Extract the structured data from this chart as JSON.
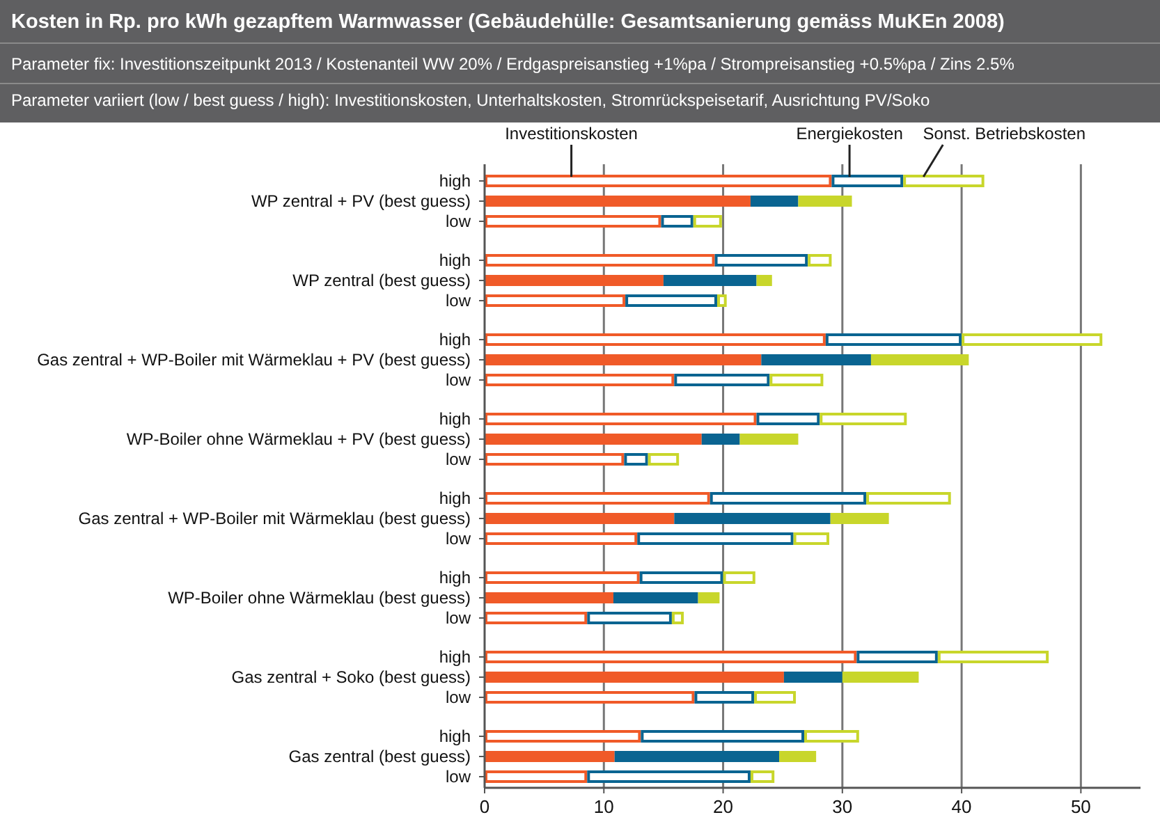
{
  "chart_data": {
    "type": "bar",
    "orientation": "horizontal",
    "stacked": true,
    "title": "Kosten in Rp. pro kWh gezapftem Warmwasser (Gebäudehülle: Gesamtsanierung gemäss MuKEn 2008)",
    "subtitle": "Parameter fix: Investitionszeitpunkt 2013 / Kostenanteil WW 20% / Erdgaspreisanstieg +1%pa / Strompreisanstieg +0.5%pa / Zins 2.5%",
    "annotations": [
      "Parameter variiert (low / best guess / high): Investitionskosten, Unterhaltskosten, Stromrückspeisetarif, Ausrichtung PV/Soko"
    ],
    "categories": [
      "high",
      "WP zentral + PV (best guess)",
      "low",
      "high",
      "WP zentral (best guess)",
      "low",
      "high",
      "Gas zentral + WP-Boiler mit Wärmeklau + PV (best guess)",
      "low",
      "high",
      "WP-Boiler ohne Wärmeklau + PV (best guess)",
      "low",
      "high",
      "Gas zentral + WP-Boiler mit Wärmeklau (best guess)",
      "low",
      "high",
      "WP-Boiler ohne Wärmeklau (best guess)",
      "low",
      "high",
      "Gas zentral + Soko (best guess)",
      "low",
      "high",
      "Gas zentral (best guess)",
      "low"
    ],
    "series": [
      {
        "name": "Investitionskosten",
        "color": "#f05a28",
        "colors": [
          "#ffffff",
          "#f05a28",
          "#ffffff",
          "#ffffff",
          "#f05a28",
          "#ffffff",
          "#ffffff",
          "#f05a28",
          "#ffffff",
          "#ffffff",
          "#f05a28",
          "#ffffff",
          "#ffffff",
          "#f05a28",
          "#ffffff",
          "#ffffff",
          "#f05a28",
          "#ffffff",
          "#ffffff",
          "#f05a28",
          "#ffffff",
          "#ffffff",
          "#f05a28",
          "#ffffff"
        ],
        "values": [
          29.1,
          22.3,
          14.8,
          19.3,
          15.0,
          11.8,
          28.6,
          23.2,
          15.9,
          22.8,
          18.2,
          11.7,
          18.9,
          15.9,
          12.8,
          13.0,
          10.8,
          8.6,
          31.2,
          25.1,
          17.6,
          13.1,
          10.9,
          8.6
        ]
      },
      {
        "name": "Energiekosten",
        "color": "#0a6491",
        "colors": [
          "#ffffff",
          "#0a6491",
          "#ffffff",
          "#ffffff",
          "#0a6491",
          "#ffffff",
          "#ffffff",
          "#0a6491",
          "#ffffff",
          "#ffffff",
          "#0a6491",
          "#ffffff",
          "#ffffff",
          "#0a6491",
          "#ffffff",
          "#ffffff",
          "#0a6491",
          "#ffffff",
          "#ffffff",
          "#0a6491",
          "#ffffff",
          "#ffffff",
          "#0a6491",
          "#ffffff"
        ],
        "values": [
          6.0,
          4.0,
          2.7,
          7.8,
          7.8,
          7.7,
          11.4,
          9.2,
          8.0,
          5.3,
          3.2,
          2.0,
          13.1,
          13.1,
          13.1,
          7.0,
          7.1,
          7.1,
          6.8,
          4.9,
          5.0,
          13.7,
          13.8,
          13.7
        ]
      },
      {
        "name": "Sonst. Betriebskosten",
        "color": "#c8d62b",
        "colors": [
          "#ffffff",
          "#c8d62b",
          "#ffffff",
          "#ffffff",
          "#c8d62b",
          "#ffffff",
          "#ffffff",
          "#c8d62b",
          "#ffffff",
          "#ffffff",
          "#c8d62b",
          "#ffffff",
          "#ffffff",
          "#c8d62b",
          "#ffffff",
          "#ffffff",
          "#c8d62b",
          "#ffffff",
          "#ffffff",
          "#c8d62b",
          "#ffffff",
          "#ffffff",
          "#c8d62b",
          "#ffffff"
        ],
        "values": [
          6.8,
          4.5,
          2.4,
          2.0,
          1.3,
          0.8,
          11.8,
          8.2,
          4.5,
          7.3,
          4.9,
          2.6,
          7.1,
          4.9,
          3.0,
          2.7,
          1.8,
          1.0,
          9.3,
          6.4,
          3.5,
          4.6,
          3.1,
          2.0
        ]
      }
    ],
    "xlim": [
      0,
      55
    ],
    "xticks": [
      0,
      10,
      20,
      30,
      40,
      50
    ],
    "grid": "x",
    "legend": "top"
  }
}
